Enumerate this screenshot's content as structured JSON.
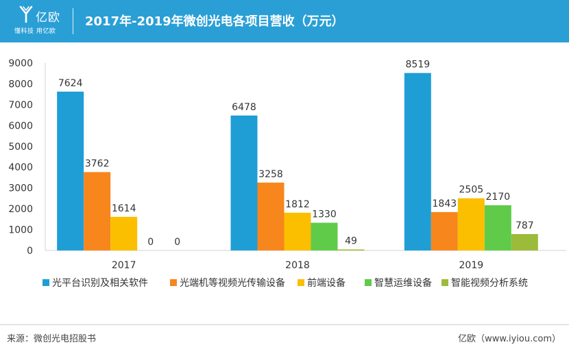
{
  "header": {
    "brand_name": "亿欧",
    "brand_tagline": "懂科技 用亿欧",
    "title": "2017年-2019年微创光电各项目营收（万元）",
    "background_color": "#2a9fd6"
  },
  "chart_data": {
    "type": "bar",
    "title": "2017年-2019年微创光电各项目营收（万元）",
    "categories": [
      "2017",
      "2018",
      "2019"
    ],
    "series": [
      {
        "name": "光平台识别及相关软件",
        "color": "#1f9ed6",
        "values": [
          7624,
          6478,
          8519
        ],
        "labels": [
          "7624",
          "6478",
          "8519"
        ]
      },
      {
        "name": "光端机等视频光传输设备",
        "color": "#f7861d",
        "values": [
          3762,
          3258,
          1843
        ],
        "labels": [
          "3762",
          "3258",
          "1843"
        ]
      },
      {
        "name": "前端设备",
        "color": "#fbbf00",
        "values": [
          1614,
          1812,
          2505
        ],
        "labels": [
          "1614",
          "1812",
          "2505"
        ]
      },
      {
        "name": "智慧运维设备",
        "color": "#5fcb49",
        "values": [
          0,
          1330,
          2170
        ],
        "labels": [
          "0",
          "1330",
          "2170"
        ]
      },
      {
        "name": "智能视频分析系统",
        "color": "#9dbb3b",
        "values": [
          0,
          49,
          787
        ],
        "labels": [
          "0",
          "49",
          "787"
        ]
      }
    ],
    "ylim": [
      0,
      9000
    ],
    "yticks": [
      "0",
      "1000",
      "2000",
      "3000",
      "4000",
      "5000",
      "6000",
      "7000",
      "8000",
      "9000"
    ],
    "grid": false,
    "legend": "bottom",
    "xlabel": "",
    "ylabel": ""
  },
  "footer": {
    "source": "来源：微创光电招股书",
    "brand": "亿欧（www.iyiou.com）"
  }
}
